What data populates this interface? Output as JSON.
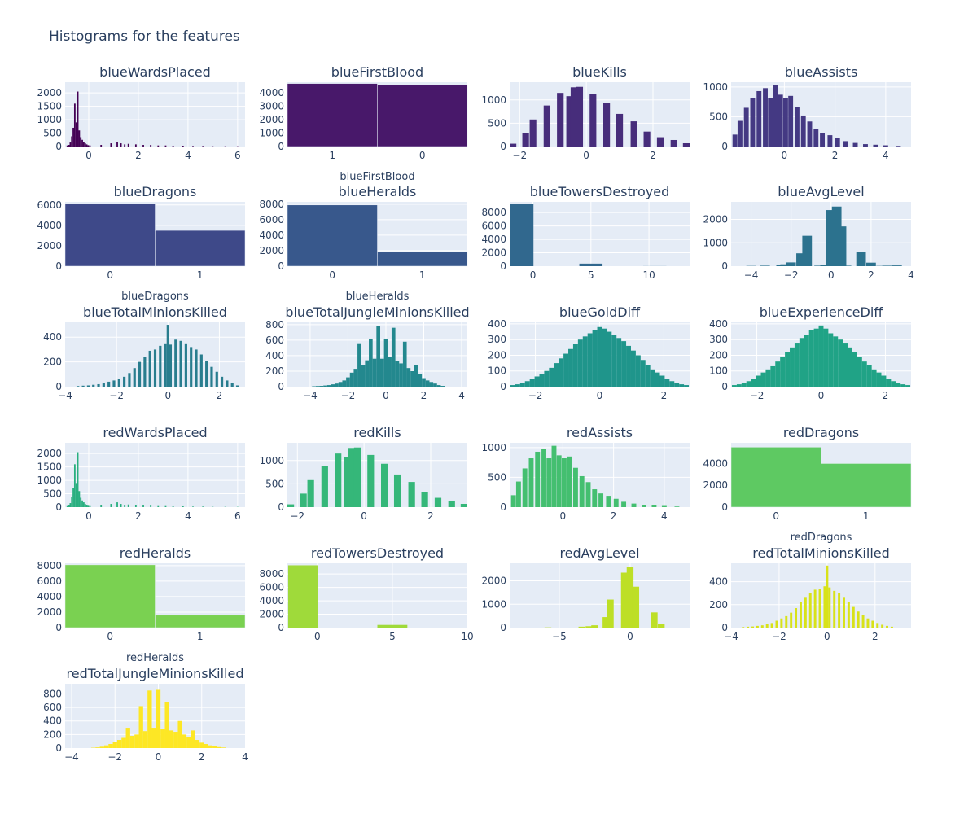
{
  "title": "Histograms for the features",
  "colors": {
    "plot_bg": "#E5ECF6",
    "grid": "#ffffff",
    "text": "#2a3f5f"
  },
  "chart_data": [
    {
      "type": "bar",
      "title": "blueWardsPlaced",
      "xlabel": "",
      "color": "#440154",
      "xlim": [
        -0.95,
        6.3
      ],
      "ylim": [
        0,
        2400
      ],
      "yticks": [
        0,
        500,
        1000,
        1500,
        2000
      ],
      "xticks": [
        0,
        2,
        4,
        6
      ],
      "bin_width": 0.06,
      "x": [
        -0.86,
        -0.8,
        -0.74,
        -0.68,
        -0.62,
        -0.56,
        -0.5,
        -0.44,
        -0.38,
        -0.32,
        -0.26,
        -0.2,
        -0.14,
        -0.08,
        -0.02,
        0.05,
        0.5,
        0.9,
        1.15,
        1.3,
        1.45,
        1.6,
        1.9,
        2.2,
        2.5,
        2.8,
        3.1,
        3.4,
        3.8,
        4.2,
        4.6,
        5.0,
        5.5,
        6.0
      ],
      "y": [
        40,
        60,
        150,
        380,
        700,
        1600,
        900,
        2050,
        600,
        350,
        250,
        180,
        120,
        80,
        50,
        40,
        60,
        120,
        180,
        120,
        80,
        100,
        80,
        60,
        60,
        40,
        40,
        30,
        30,
        20,
        20,
        10,
        10,
        10
      ]
    },
    {
      "type": "bar",
      "title": "blueFirstBlood",
      "xlabel": "blueFirstBlood",
      "color": "#48186a",
      "categories": [
        "1",
        "0"
      ],
      "values": [
        4700,
        4600
      ],
      "ylim": [
        0,
        4800
      ],
      "yticks": [
        0,
        1000,
        2000,
        3000,
        4000
      ]
    },
    {
      "type": "bar",
      "title": "blueKills",
      "xlabel": "",
      "color": "#472d7b",
      "xlim": [
        -2.3,
        3.1
      ],
      "ylim": [
        0,
        1380
      ],
      "yticks": [
        0,
        500,
        1000
      ],
      "xticks": [
        -2,
        0,
        2
      ],
      "bin_width": 0.2,
      "x": [
        -2.2,
        -1.82,
        -1.6,
        -1.18,
        -0.78,
        -0.5,
        -0.37,
        -0.2,
        0.2,
        0.61,
        1.0,
        1.43,
        1.82,
        2.22,
        2.63,
        3.0
      ],
      "y": [
        60,
        290,
        580,
        880,
        1150,
        1080,
        1270,
        1280,
        1120,
        930,
        700,
        540,
        320,
        200,
        140,
        70
      ]
    },
    {
      "type": "bar",
      "title": "blueAssists",
      "xlabel": "",
      "color": "#443983",
      "xlim": [
        -2.1,
        5.0
      ],
      "ylim": [
        0,
        1080
      ],
      "yticks": [
        0,
        500,
        1000
      ],
      "xticks": [
        0,
        2,
        4
      ],
      "bin_width": 0.19,
      "x": [
        -1.95,
        -1.75,
        -1.5,
        -1.25,
        -1.0,
        -0.75,
        -0.55,
        -0.35,
        -0.15,
        0.05,
        0.25,
        0.5,
        0.75,
        1.0,
        1.25,
        1.5,
        1.8,
        2.1,
        2.4,
        2.8,
        3.2,
        3.6,
        4.0,
        4.5
      ],
      "y": [
        200,
        430,
        650,
        820,
        930,
        980,
        820,
        1030,
        870,
        820,
        850,
        660,
        520,
        420,
        300,
        230,
        190,
        140,
        90,
        60,
        40,
        30,
        20,
        10
      ]
    },
    {
      "type": "bar",
      "title": "blueDragons",
      "xlabel": "blueDragons",
      "color": "#3e4989",
      "categories": [
        "0",
        "1"
      ],
      "values": [
        6100,
        3500
      ],
      "ylim": [
        0,
        6300
      ],
      "yticks": [
        0,
        2000,
        4000,
        6000
      ]
    },
    {
      "type": "bar",
      "title": "blueHeralds",
      "xlabel": "blueHeralds",
      "color": "#38588c",
      "categories": [
        "0",
        "1"
      ],
      "values": [
        7900,
        1850
      ],
      "ylim": [
        0,
        8300
      ],
      "yticks": [
        0,
        2000,
        4000,
        6000,
        8000
      ]
    },
    {
      "type": "bar",
      "title": "blueTowersDestroyed",
      "xlabel": "",
      "color": "#31688e",
      "xlim": [
        -2,
        13.5
      ],
      "ylim": [
        0,
        9600
      ],
      "yticks": [
        0,
        2000,
        4000,
        6000,
        8000
      ],
      "xticks": [
        0,
        5,
        10
      ],
      "bin_width": 2.0,
      "x": [
        -0.95,
        5.0,
        10.5
      ],
      "y": [
        9350,
        380,
        10
      ]
    },
    {
      "type": "bar",
      "title": "blueAvgLevel",
      "xlabel": "",
      "color": "#2c728e",
      "xlim": [
        -5,
        4
      ],
      "ylim": [
        0,
        2750
      ],
      "yticks": [
        0,
        1000,
        2000
      ],
      "xticks": [
        -4,
        -2,
        0,
        2,
        4
      ],
      "bin_width": 0.48,
      "x": [
        -4,
        -3.3,
        -2.5,
        -2.3,
        -2.0,
        -1.5,
        -1.2,
        -0.6,
        -0.3,
        0.0,
        0.28,
        0.52,
        0.77,
        1.5,
        2.0,
        2.5,
        2.8,
        3.3
      ],
      "y": [
        10,
        20,
        40,
        80,
        160,
        550,
        1300,
        20,
        40,
        2400,
        2550,
        1700,
        20,
        620,
        150,
        10,
        20,
        30
      ]
    },
    {
      "type": "bar",
      "title": "blueTotalMinionsKilled",
      "xlabel": "",
      "color": "#287d8e",
      "xlim": [
        -4,
        3.0
      ],
      "ylim": [
        0,
        520
      ],
      "yticks": [
        0,
        200,
        400
      ],
      "xticks": [
        -4,
        -2,
        0,
        2
      ],
      "x": [
        -3.5,
        -3.3,
        -3.1,
        -2.9,
        -2.7,
        -2.5,
        -2.3,
        -2.1,
        -1.9,
        -1.7,
        -1.5,
        -1.3,
        -1.1,
        -0.9,
        -0.7,
        -0.5,
        -0.3,
        -0.1,
        0.0,
        0.1,
        0.3,
        0.5,
        0.7,
        0.9,
        1.1,
        1.3,
        1.5,
        1.7,
        1.9,
        2.1,
        2.3,
        2.5,
        2.7
      ],
      "y": [
        5,
        8,
        10,
        15,
        20,
        30,
        40,
        50,
        60,
        80,
        110,
        150,
        200,
        240,
        290,
        300,
        330,
        350,
        500,
        340,
        380,
        370,
        350,
        320,
        300,
        260,
        210,
        160,
        120,
        80,
        50,
        30,
        10
      ]
    },
    {
      "type": "bar",
      "title": "blueTotalJungleMinionsKilled",
      "xlabel": "",
      "color": "#23888e",
      "xlim": [
        -5.2,
        4.3
      ],
      "ylim": [
        0,
        830
      ],
      "yticks": [
        0,
        200,
        400,
        600,
        800
      ],
      "xticks": [
        -4,
        -2,
        0,
        2,
        4
      ],
      "x": [
        -3.8,
        -3.6,
        -3.4,
        -3.2,
        -3.0,
        -2.8,
        -2.6,
        -2.4,
        -2.2,
        -2.0,
        -1.8,
        -1.6,
        -1.4,
        -1.2,
        -1.0,
        -0.8,
        -0.6,
        -0.4,
        -0.2,
        0.0,
        0.2,
        0.4,
        0.6,
        0.8,
        1.0,
        1.2,
        1.4,
        1.6,
        1.8,
        2.0,
        2.2,
        2.4,
        2.6,
        2.8,
        3.0
      ],
      "y": [
        5,
        8,
        10,
        15,
        20,
        30,
        40,
        60,
        80,
        120,
        180,
        230,
        560,
        280,
        340,
        620,
        360,
        780,
        360,
        620,
        380,
        760,
        330,
        300,
        580,
        240,
        200,
        280,
        160,
        110,
        80,
        60,
        40,
        20,
        10
      ]
    },
    {
      "type": "bar",
      "title": "blueGoldDiff",
      "xlabel": "",
      "color": "#1f958b",
      "xlim": [
        -2.8,
        2.8
      ],
      "ylim": [
        0,
        410
      ],
      "yticks": [
        0,
        100,
        200,
        300,
        400
      ],
      "xticks": [
        -2,
        0,
        2
      ],
      "x": [
        -2.7,
        -2.55,
        -2.4,
        -2.25,
        -2.1,
        -1.95,
        -1.8,
        -1.65,
        -1.5,
        -1.35,
        -1.2,
        -1.05,
        -0.9,
        -0.75,
        -0.6,
        -0.45,
        -0.3,
        -0.15,
        0.0,
        0.15,
        0.3,
        0.45,
        0.6,
        0.75,
        0.9,
        1.05,
        1.2,
        1.35,
        1.5,
        1.65,
        1.8,
        1.95,
        2.1,
        2.25,
        2.4,
        2.55,
        2.7
      ],
      "y": [
        10,
        15,
        25,
        35,
        50,
        65,
        80,
        100,
        120,
        150,
        180,
        210,
        240,
        270,
        300,
        320,
        340,
        360,
        380,
        370,
        350,
        330,
        310,
        290,
        260,
        230,
        200,
        170,
        140,
        110,
        90,
        70,
        50,
        35,
        25,
        15,
        10
      ]
    },
    {
      "type": "bar",
      "title": "blueExperienceDiff",
      "xlabel": "",
      "color": "#20a386",
      "xlim": [
        -2.8,
        2.8
      ],
      "ylim": [
        0,
        410
      ],
      "yticks": [
        0,
        100,
        200,
        300,
        400
      ],
      "xticks": [
        -2,
        0,
        2
      ],
      "x": [
        -2.7,
        -2.55,
        -2.4,
        -2.25,
        -2.1,
        -1.95,
        -1.8,
        -1.65,
        -1.5,
        -1.35,
        -1.2,
        -1.05,
        -0.9,
        -0.75,
        -0.6,
        -0.45,
        -0.3,
        -0.15,
        0.0,
        0.15,
        0.3,
        0.45,
        0.6,
        0.75,
        0.9,
        1.05,
        1.2,
        1.35,
        1.5,
        1.65,
        1.8,
        1.95,
        2.1,
        2.25,
        2.4,
        2.55,
        2.7
      ],
      "y": [
        10,
        15,
        25,
        35,
        50,
        70,
        90,
        110,
        130,
        160,
        190,
        220,
        250,
        280,
        310,
        330,
        360,
        370,
        390,
        370,
        340,
        320,
        300,
        280,
        250,
        220,
        190,
        160,
        140,
        110,
        90,
        70,
        50,
        35,
        25,
        15,
        10
      ]
    },
    {
      "type": "bar",
      "title": "redWardsPlaced",
      "xlabel": "",
      "color": "#29af7f",
      "xlim": [
        -0.95,
        6.3
      ],
      "ylim": [
        0,
        2400
      ],
      "yticks": [
        0,
        500,
        1000,
        1500,
        2000
      ],
      "xticks": [
        0,
        2,
        4,
        6
      ],
      "bin_width": 0.06,
      "x": [
        -0.86,
        -0.8,
        -0.74,
        -0.68,
        -0.62,
        -0.56,
        -0.5,
        -0.44,
        -0.38,
        -0.32,
        -0.26,
        -0.2,
        -0.14,
        -0.08,
        -0.02,
        0.05,
        0.5,
        0.9,
        1.15,
        1.3,
        1.45,
        1.6,
        1.9,
        2.2,
        2.5,
        2.8,
        3.1,
        3.4,
        3.8,
        4.2,
        4.6,
        5.0,
        5.5,
        6.0
      ],
      "y": [
        40,
        60,
        150,
        380,
        700,
        1600,
        900,
        2050,
        600,
        350,
        250,
        180,
        120,
        80,
        50,
        40,
        60,
        120,
        180,
        120,
        80,
        100,
        80,
        60,
        60,
        40,
        40,
        30,
        30,
        20,
        20,
        10,
        10,
        10
      ]
    },
    {
      "type": "bar",
      "title": "redKills",
      "xlabel": "",
      "color": "#35b779",
      "xlim": [
        -2.3,
        3.1
      ],
      "ylim": [
        0,
        1380
      ],
      "yticks": [
        0,
        500,
        1000
      ],
      "xticks": [
        -2,
        0,
        2
      ],
      "bin_width": 0.2,
      "x": [
        -2.2,
        -1.82,
        -1.6,
        -1.18,
        -0.78,
        -0.5,
        -0.37,
        -0.2,
        0.2,
        0.61,
        1.0,
        1.43,
        1.82,
        2.22,
        2.63,
        3.0
      ],
      "y": [
        60,
        290,
        580,
        880,
        1150,
        1080,
        1270,
        1280,
        1120,
        930,
        700,
        540,
        320,
        200,
        140,
        70
      ]
    },
    {
      "type": "bar",
      "title": "redAssists",
      "xlabel": "",
      "color": "#44bf70",
      "xlim": [
        -2.1,
        5.0
      ],
      "ylim": [
        0,
        1080
      ],
      "yticks": [
        0,
        500,
        1000
      ],
      "xticks": [
        0,
        2,
        4
      ],
      "bin_width": 0.19,
      "x": [
        -1.95,
        -1.75,
        -1.5,
        -1.25,
        -1.0,
        -0.75,
        -0.55,
        -0.35,
        -0.15,
        0.05,
        0.25,
        0.5,
        0.75,
        1.0,
        1.25,
        1.5,
        1.8,
        2.1,
        2.4,
        2.8,
        3.2,
        3.6,
        4.0,
        4.5
      ],
      "y": [
        200,
        430,
        650,
        820,
        930,
        980,
        820,
        1030,
        870,
        820,
        850,
        660,
        520,
        420,
        300,
        230,
        190,
        140,
        90,
        60,
        40,
        30,
        20,
        10
      ]
    },
    {
      "type": "bar",
      "title": "redDragons",
      "xlabel": "redDragons",
      "color": "#5ec962",
      "categories": [
        "0",
        "1"
      ],
      "values": [
        5500,
        4000
      ],
      "ylim": [
        0,
        5900
      ],
      "yticks": [
        0,
        2000,
        4000
      ]
    },
    {
      "type": "bar",
      "title": "redHeralds",
      "xlabel": "redHeralds",
      "color": "#7ad151",
      "categories": [
        "0",
        "1"
      ],
      "values": [
        8100,
        1600
      ],
      "ylim": [
        0,
        8300
      ],
      "yticks": [
        0,
        2000,
        4000,
        6000,
        8000
      ]
    },
    {
      "type": "bar",
      "title": "redTowersDestroyed",
      "xlabel": "",
      "color": "#9fda3a",
      "xlim": [
        -2,
        10
      ],
      "ylim": [
        0,
        9600
      ],
      "yticks": [
        0,
        2000,
        4000,
        6000,
        8000
      ],
      "xticks": [
        0,
        5,
        10
      ],
      "bin_width": 2.0,
      "x": [
        -0.95,
        5.0
      ],
      "y": [
        9300,
        400
      ]
    },
    {
      "type": "bar",
      "title": "redAvgLevel",
      "xlabel": "",
      "color": "#bddf26",
      "xlim": [
        -8.5,
        4.2
      ],
      "ylim": [
        0,
        2750
      ],
      "yticks": [
        0,
        1000,
        2000
      ],
      "xticks": [
        -5,
        0
      ],
      "bin_width": 0.48,
      "x": [
        -5.8,
        -3.4,
        -2.9,
        -2.5,
        -1.7,
        -1.4,
        -0.4,
        0.0,
        0.4,
        1.7,
        2.2
      ],
      "y": [
        10,
        40,
        60,
        100,
        450,
        1200,
        2350,
        2600,
        1750,
        650,
        150
      ]
    },
    {
      "type": "bar",
      "title": "redTotalMinionsKilled",
      "xlabel": "",
      "color": "#d8e219",
      "xlim": [
        -4,
        3.5
      ],
      "ylim": [
        0,
        560
      ],
      "yticks": [
        0,
        200,
        400
      ],
      "xticks": [
        -4,
        -2,
        0,
        2
      ],
      "x": [
        -3.5,
        -3.3,
        -3.1,
        -2.9,
        -2.7,
        -2.5,
        -2.3,
        -2.1,
        -1.9,
        -1.7,
        -1.5,
        -1.3,
        -1.1,
        -0.9,
        -0.7,
        -0.5,
        -0.3,
        -0.1,
        0.0,
        0.1,
        0.3,
        0.5,
        0.7,
        0.9,
        1.1,
        1.3,
        1.5,
        1.7,
        1.9,
        2.1,
        2.3,
        2.5,
        2.7
      ],
      "y": [
        5,
        8,
        10,
        15,
        20,
        30,
        40,
        60,
        80,
        100,
        130,
        170,
        220,
        260,
        300,
        330,
        340,
        360,
        540,
        350,
        320,
        300,
        260,
        220,
        180,
        140,
        110,
        80,
        60,
        40,
        25,
        15,
        8
      ]
    },
    {
      "type": "bar",
      "title": "redTotalJungleMinionsKilled",
      "xlabel": "",
      "color": "#fde725",
      "xlim": [
        -4.3,
        4.0
      ],
      "ylim": [
        0,
        950
      ],
      "yticks": [
        0,
        200,
        400,
        600,
        800
      ],
      "xticks": [
        -4,
        -2,
        0,
        2,
        4
      ],
      "x": [
        -3.0,
        -2.8,
        -2.6,
        -2.4,
        -2.2,
        -2.0,
        -1.8,
        -1.6,
        -1.4,
        -1.2,
        -1.0,
        -0.8,
        -0.6,
        -0.4,
        -0.2,
        0.0,
        0.2,
        0.4,
        0.6,
        0.8,
        1.0,
        1.2,
        1.4,
        1.6,
        1.8,
        2.0,
        2.2,
        2.4,
        2.6,
        2.8,
        3.0
      ],
      "y": [
        5,
        10,
        20,
        40,
        60,
        90,
        120,
        150,
        300,
        180,
        200,
        620,
        250,
        850,
        300,
        860,
        280,
        680,
        260,
        240,
        400,
        200,
        160,
        260,
        120,
        80,
        60,
        40,
        25,
        15,
        8
      ]
    }
  ]
}
